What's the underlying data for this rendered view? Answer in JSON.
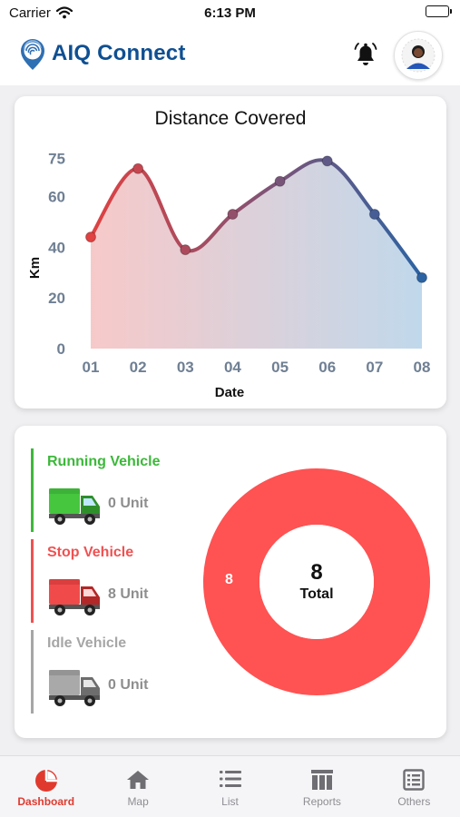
{
  "status_bar": {
    "carrier": "Carrier",
    "time": "6:13 PM"
  },
  "header": {
    "app_name": "AIQ Connect",
    "logo_icon": "fingerprint-location-icon",
    "notification_icon": "bell-icon",
    "avatar_icon": "user-avatar-icon"
  },
  "colors": {
    "brand": "#0f4f92",
    "running": "#3cb83a",
    "stop": "#f05151",
    "idle": "#a6a6a6",
    "line_start": "#e04141",
    "line_end": "#2c63a3",
    "active_tab": "#e03a2f"
  },
  "distance_card": {
    "title": "Distance Covered",
    "chart_data": {
      "type": "area",
      "title": "Distance Covered",
      "xlabel": "Date",
      "ylabel": "Km",
      "categories": [
        "01",
        "02",
        "03",
        "04",
        "05",
        "06",
        "07",
        "08"
      ],
      "values": [
        44,
        71,
        39,
        53,
        66,
        74,
        53,
        28
      ],
      "y_tick_labels": [
        "0",
        "20",
        "40",
        "60",
        "75"
      ],
      "y_ticks": [
        0,
        20,
        40,
        60,
        75
      ],
      "ylim": [
        0,
        77
      ],
      "grid": false,
      "legend": "none"
    }
  },
  "vehicle_card": {
    "groups": [
      {
        "label": "Running Vehicle",
        "count": "0 Unit",
        "icon": "green-truck-icon",
        "color": "#3cb83a"
      },
      {
        "label": "Stop Vehicle",
        "count": "8 Unit",
        "icon": "red-truck-icon",
        "color": "#f05151"
      },
      {
        "label": "Idle Vehicle",
        "count": "0 Unit",
        "icon": "grey-truck-icon",
        "color": "#a6a6a6"
      }
    ],
    "chart_data": {
      "type": "pie",
      "slices": [
        {
          "name": "Stop Vehicle",
          "value": 8,
          "color": "#ff5252"
        }
      ],
      "slice_label": "8",
      "center_value": "8",
      "center_label": "Total",
      "legend": "none"
    }
  },
  "tab_bar": {
    "tabs": [
      {
        "label": "Dashboard",
        "icon": "pie-chart-icon",
        "active": true
      },
      {
        "label": "Map",
        "icon": "home-icon",
        "active": false
      },
      {
        "label": "List",
        "icon": "list-icon",
        "active": false
      },
      {
        "label": "Reports",
        "icon": "reports-icon",
        "active": false
      },
      {
        "label": "Others",
        "icon": "others-icon",
        "active": false
      }
    ]
  }
}
